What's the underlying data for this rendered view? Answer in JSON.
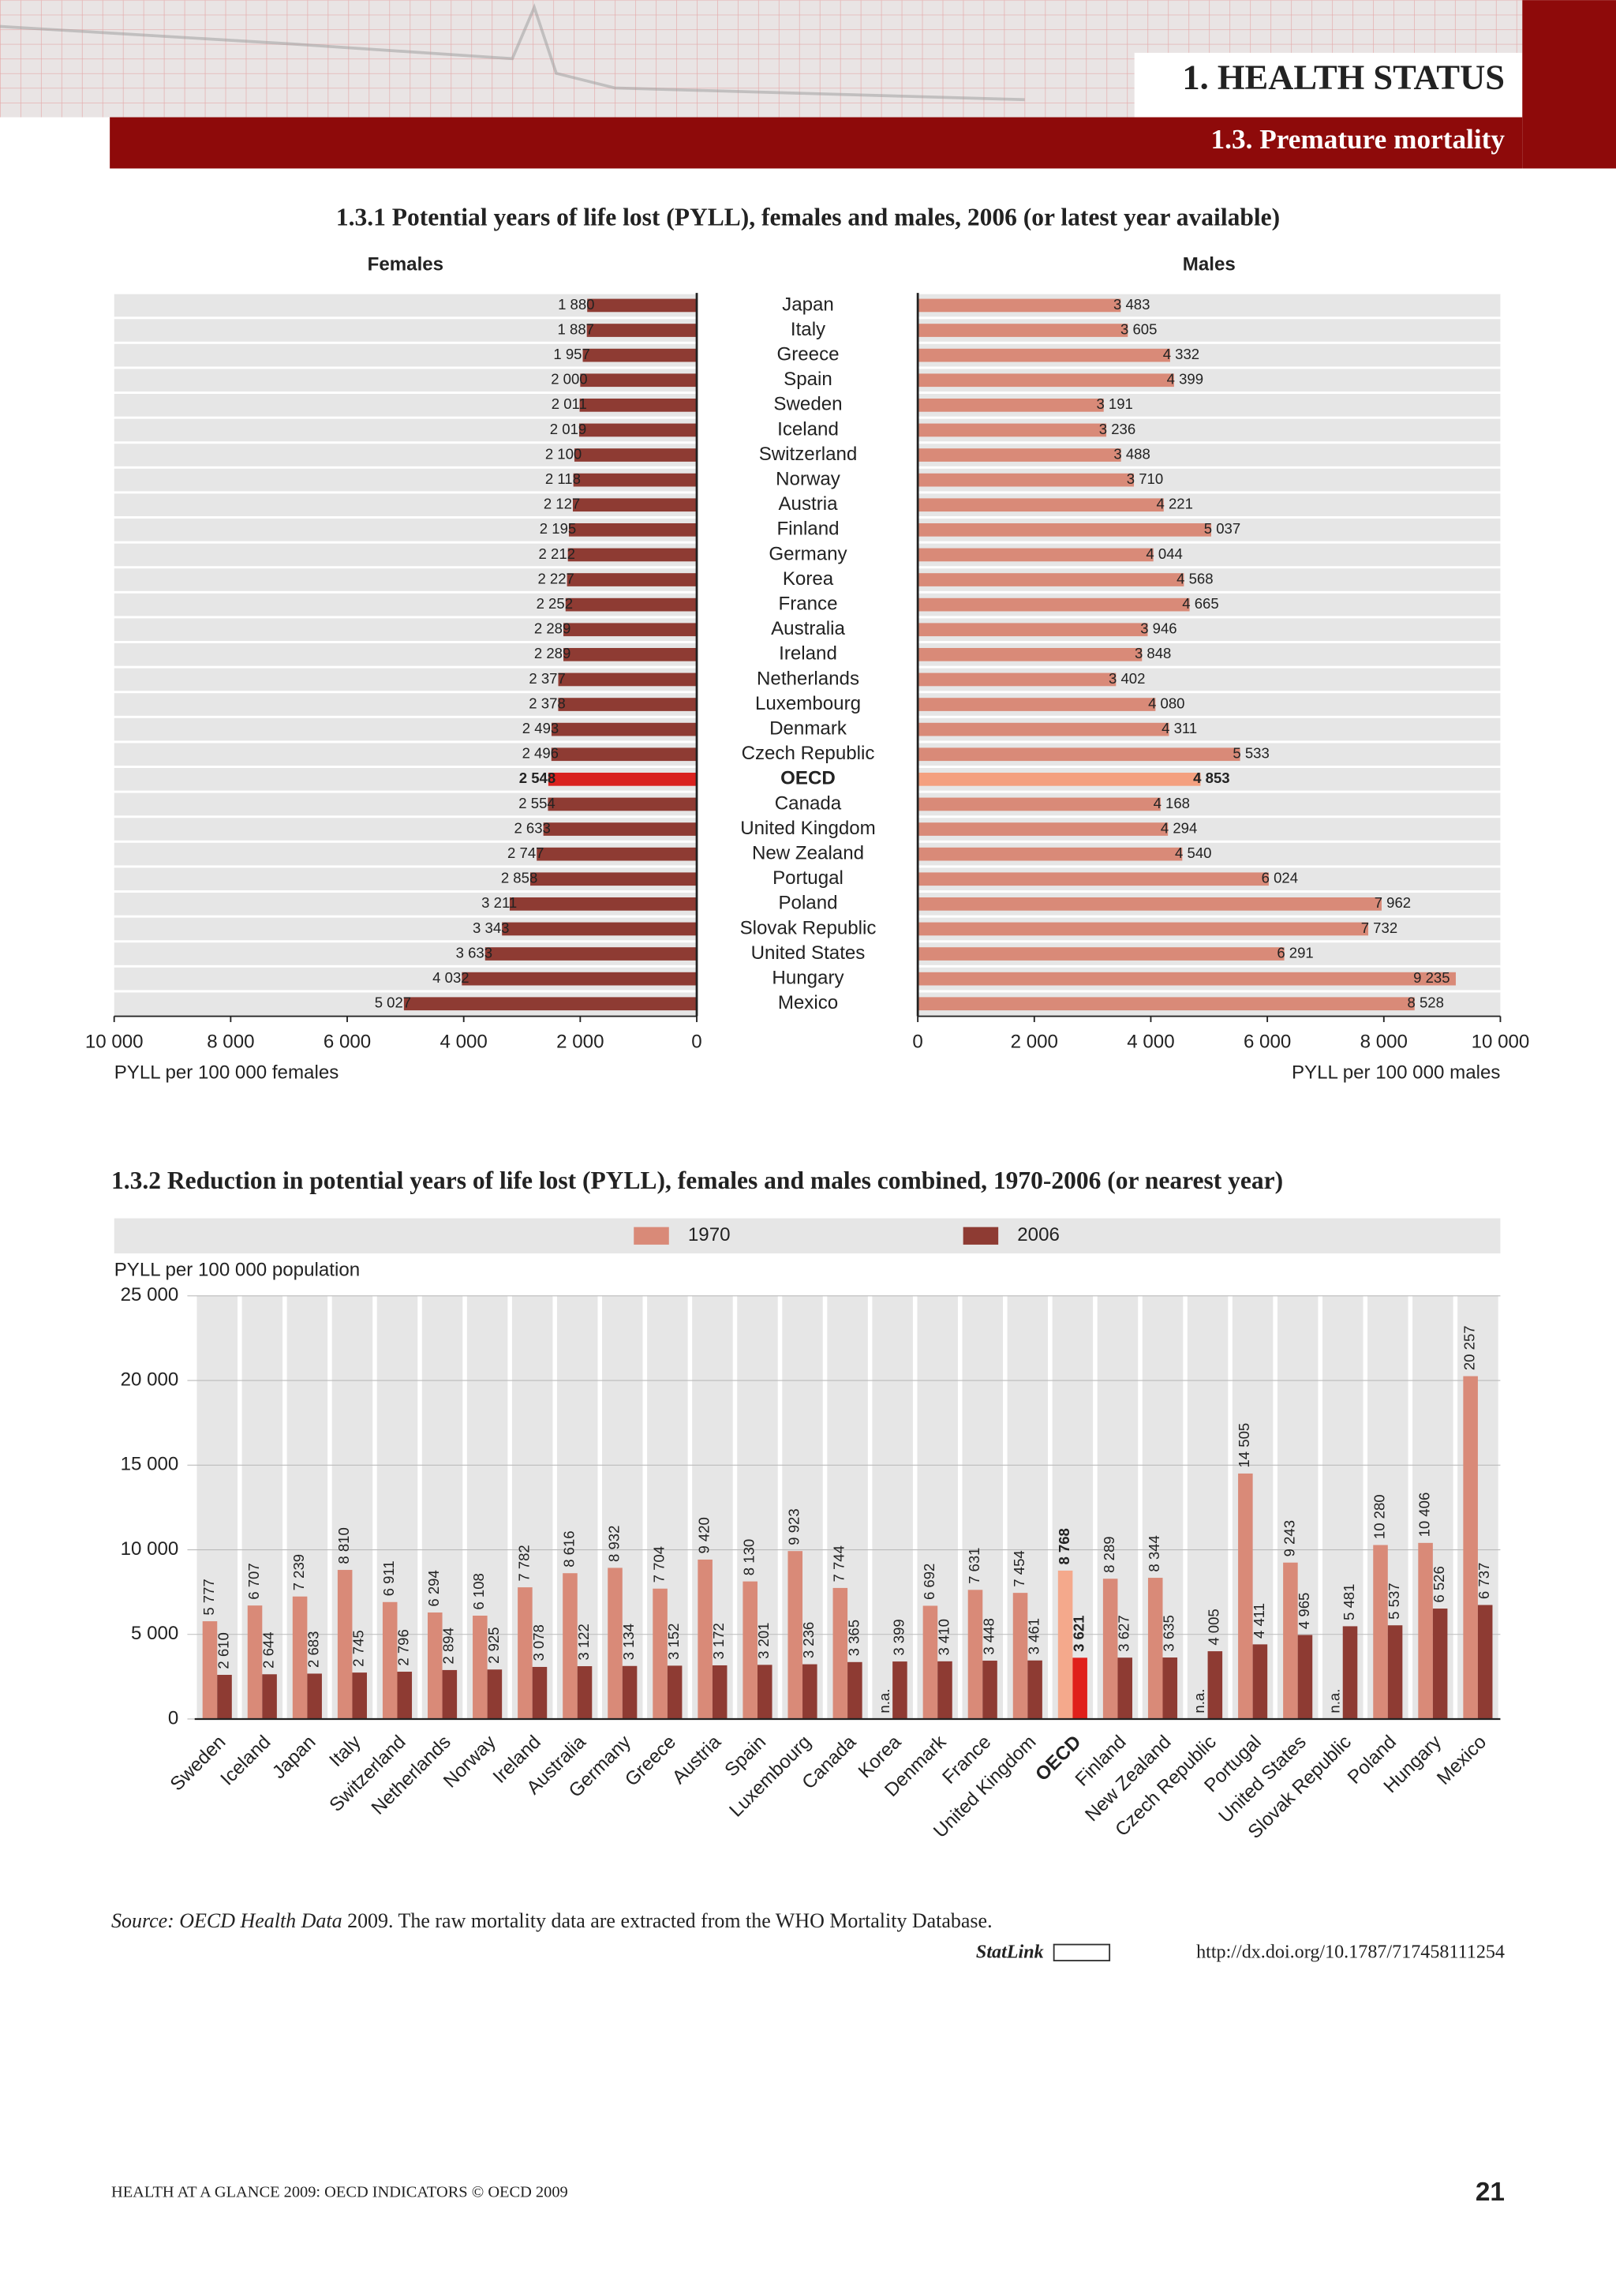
{
  "header": {
    "chapter": "1. HEALTH STATUS",
    "section": "1.3. Premature mortality"
  },
  "chart_data": [
    {
      "type": "butterfly",
      "title": "1.3.1 Potential years of life lost (PYLL), females and males, 2006 (or latest year available)",
      "categories": [
        "Japan",
        "Italy",
        "Greece",
        "Spain",
        "Sweden",
        "Iceland",
        "Switzerland",
        "Norway",
        "Austria",
        "Finland",
        "Germany",
        "Korea",
        "France",
        "Australia",
        "Ireland",
        "Netherlands",
        "Luxembourg",
        "Denmark",
        "Czech Republic",
        "OECD",
        "Canada",
        "United Kingdom",
        "New Zealand",
        "Portugal",
        "Poland",
        "Slovak Republic",
        "United States",
        "Hungary",
        "Mexico"
      ],
      "highlight_index": 19,
      "xlim": [
        0,
        10000
      ],
      "xticks": [
        0,
        {
          "value": 2000,
          "label": "2 000"
        },
        {
          "value": 4000,
          "label": "4 000"
        },
        {
          "value": 6000,
          "label": "6 000"
        },
        {
          "value": 8000,
          "label": "8 000"
        },
        {
          "value": 10000,
          "label": "10 000"
        }
      ],
      "series": [
        {
          "name": "Females",
          "color": "#8e3b33",
          "highlight_color": "#d9221f",
          "xlabel": "PYLL per 100 000 females",
          "values": [
            1880,
            1887,
            1957,
            2000,
            2011,
            2019,
            2100,
            2118,
            2127,
            2195,
            2212,
            2227,
            2252,
            2289,
            2289,
            2377,
            2378,
            2493,
            2496,
            2548,
            2554,
            2633,
            2747,
            2858,
            3211,
            3343,
            3633,
            4032,
            5027
          ],
          "value_labels": [
            "1 880",
            "1 887",
            "1 957",
            "2 000",
            "2 011",
            "2 019",
            "2 100",
            "2 118",
            "2 127",
            "2 195",
            "2 212",
            "2 227",
            "2 252",
            "2 289",
            "2 289",
            "2 377",
            "2 378",
            "2 493",
            "2 496",
            "2 548",
            "2 554",
            "2 633",
            "2 747",
            "2 858",
            "3 211",
            "3 343",
            "3 633",
            "4 032",
            "5 027"
          ]
        },
        {
          "name": "Males",
          "color": "#d98a78",
          "highlight_color": "#f4a07f",
          "xlabel": "PYLL per 100 000 males",
          "values": [
            3483,
            3605,
            4332,
            4399,
            3191,
            3236,
            3488,
            3710,
            4221,
            5037,
            4044,
            4568,
            4665,
            3946,
            3848,
            3402,
            4080,
            4311,
            5533,
            4853,
            4168,
            4294,
            4540,
            6024,
            7962,
            7732,
            6291,
            9235,
            8528
          ],
          "value_labels": [
            "3 483",
            "3 605",
            "4 332",
            "4 399",
            "3 191",
            "3 236",
            "3 488",
            "3 710",
            "4 221",
            "5 037",
            "4 044",
            "4 568",
            "4 665",
            "3 946",
            "3 848",
            "3 402",
            "4 080",
            "4 311",
            "5 533",
            "4 853",
            "4 168",
            "4 294",
            "4 540",
            "6 024",
            "7 962",
            "7 732",
            "6 291",
            "9 235",
            "8 528"
          ]
        }
      ]
    },
    {
      "type": "bar",
      "title": "1.3.2 Reduction in potential years of life lost (PYLL), females and males combined, 1970-2006 (or nearest year)",
      "ylabel": "PYLL per 100 000 population",
      "legend": "top",
      "categories": [
        "Sweden",
        "Iceland",
        "Japan",
        "Italy",
        "Switzerland",
        "Netherlands",
        "Norway",
        "Ireland",
        "Australia",
        "Germany",
        "Greece",
        "Austria",
        "Spain",
        "Luxembourg",
        "Canada",
        "Korea",
        "Denmark",
        "France",
        "United Kingdom",
        "OECD",
        "Finland",
        "New Zealand",
        "Czech Republic",
        "Portugal",
        "United States",
        "Slovak Republic",
        "Poland",
        "Hungary",
        "Mexico"
      ],
      "highlight_index": 19,
      "ylim": [
        0,
        25000
      ],
      "yticks": [
        0,
        {
          "value": 5000,
          "label": "5 000"
        },
        {
          "value": 10000,
          "label": "10 000"
        },
        {
          "value": 15000,
          "label": "15 000"
        },
        {
          "value": 20000,
          "label": "20 000"
        },
        {
          "value": 25000,
          "label": "25 000"
        }
      ],
      "series": [
        {
          "name": "1970",
          "color": "#d98a78",
          "highlight_color": "#f4a98c",
          "values": [
            5777,
            6707,
            7239,
            8810,
            6911,
            6294,
            6108,
            7782,
            8616,
            8932,
            7704,
            9420,
            8130,
            9923,
            7744,
            null,
            6692,
            7631,
            7454,
            8768,
            8289,
            8344,
            null,
            14505,
            9243,
            null,
            10280,
            10406,
            20257
          ],
          "value_labels": [
            "5 777",
            "6 707",
            "7 239",
            "8 810",
            "6 911",
            "6 294",
            "6 108",
            "7 782",
            "8 616",
            "8 932",
            "7 704",
            "9 420",
            "8 130",
            "9 923",
            "7 744",
            "n.a.",
            "6 692",
            "7 631",
            "7 454",
            "8 768",
            "8 289",
            "8 344",
            "n.a.",
            "14 505",
            "9 243",
            "n.a.",
            "10 280",
            "10 406",
            "20 257"
          ]
        },
        {
          "name": "2006",
          "color": "#8e3b33",
          "highlight_color": "#e0201b",
          "values": [
            2610,
            2644,
            2683,
            2745,
            2796,
            2894,
            2925,
            3078,
            3122,
            3134,
            3152,
            3172,
            3201,
            3236,
            3365,
            3399,
            3410,
            3448,
            3461,
            3621,
            3627,
            3635,
            4005,
            4411,
            4965,
            5481,
            5537,
            6526,
            6737
          ],
          "value_labels": [
            "2 610",
            "2 644",
            "2 683",
            "2 745",
            "2 796",
            "2 894",
            "2 925",
            "3 078",
            "3 122",
            "3 134",
            "3 152",
            "3 172",
            "3 201",
            "3 236",
            "3 365",
            "3 399",
            "3 410",
            "3 448",
            "3 461",
            "3 621",
            "3 627",
            "3 635",
            "4 005",
            "4 411",
            "4 965",
            "5 481",
            "5 537",
            "6 526",
            "6 737"
          ]
        }
      ]
    }
  ],
  "source": {
    "label": "Source:",
    "title": "OECD Health Data",
    "text": "2009. The raw mortality data are extracted from the WHO Mortality Database."
  },
  "statlink": {
    "brand": "StatLink",
    "url": "http://dx.doi.org/10.1787/717458111254"
  },
  "footer": {
    "text": "HEALTH AT A GLANCE 2009: OECD INDICATORS © OECD 2009",
    "page": "21"
  }
}
